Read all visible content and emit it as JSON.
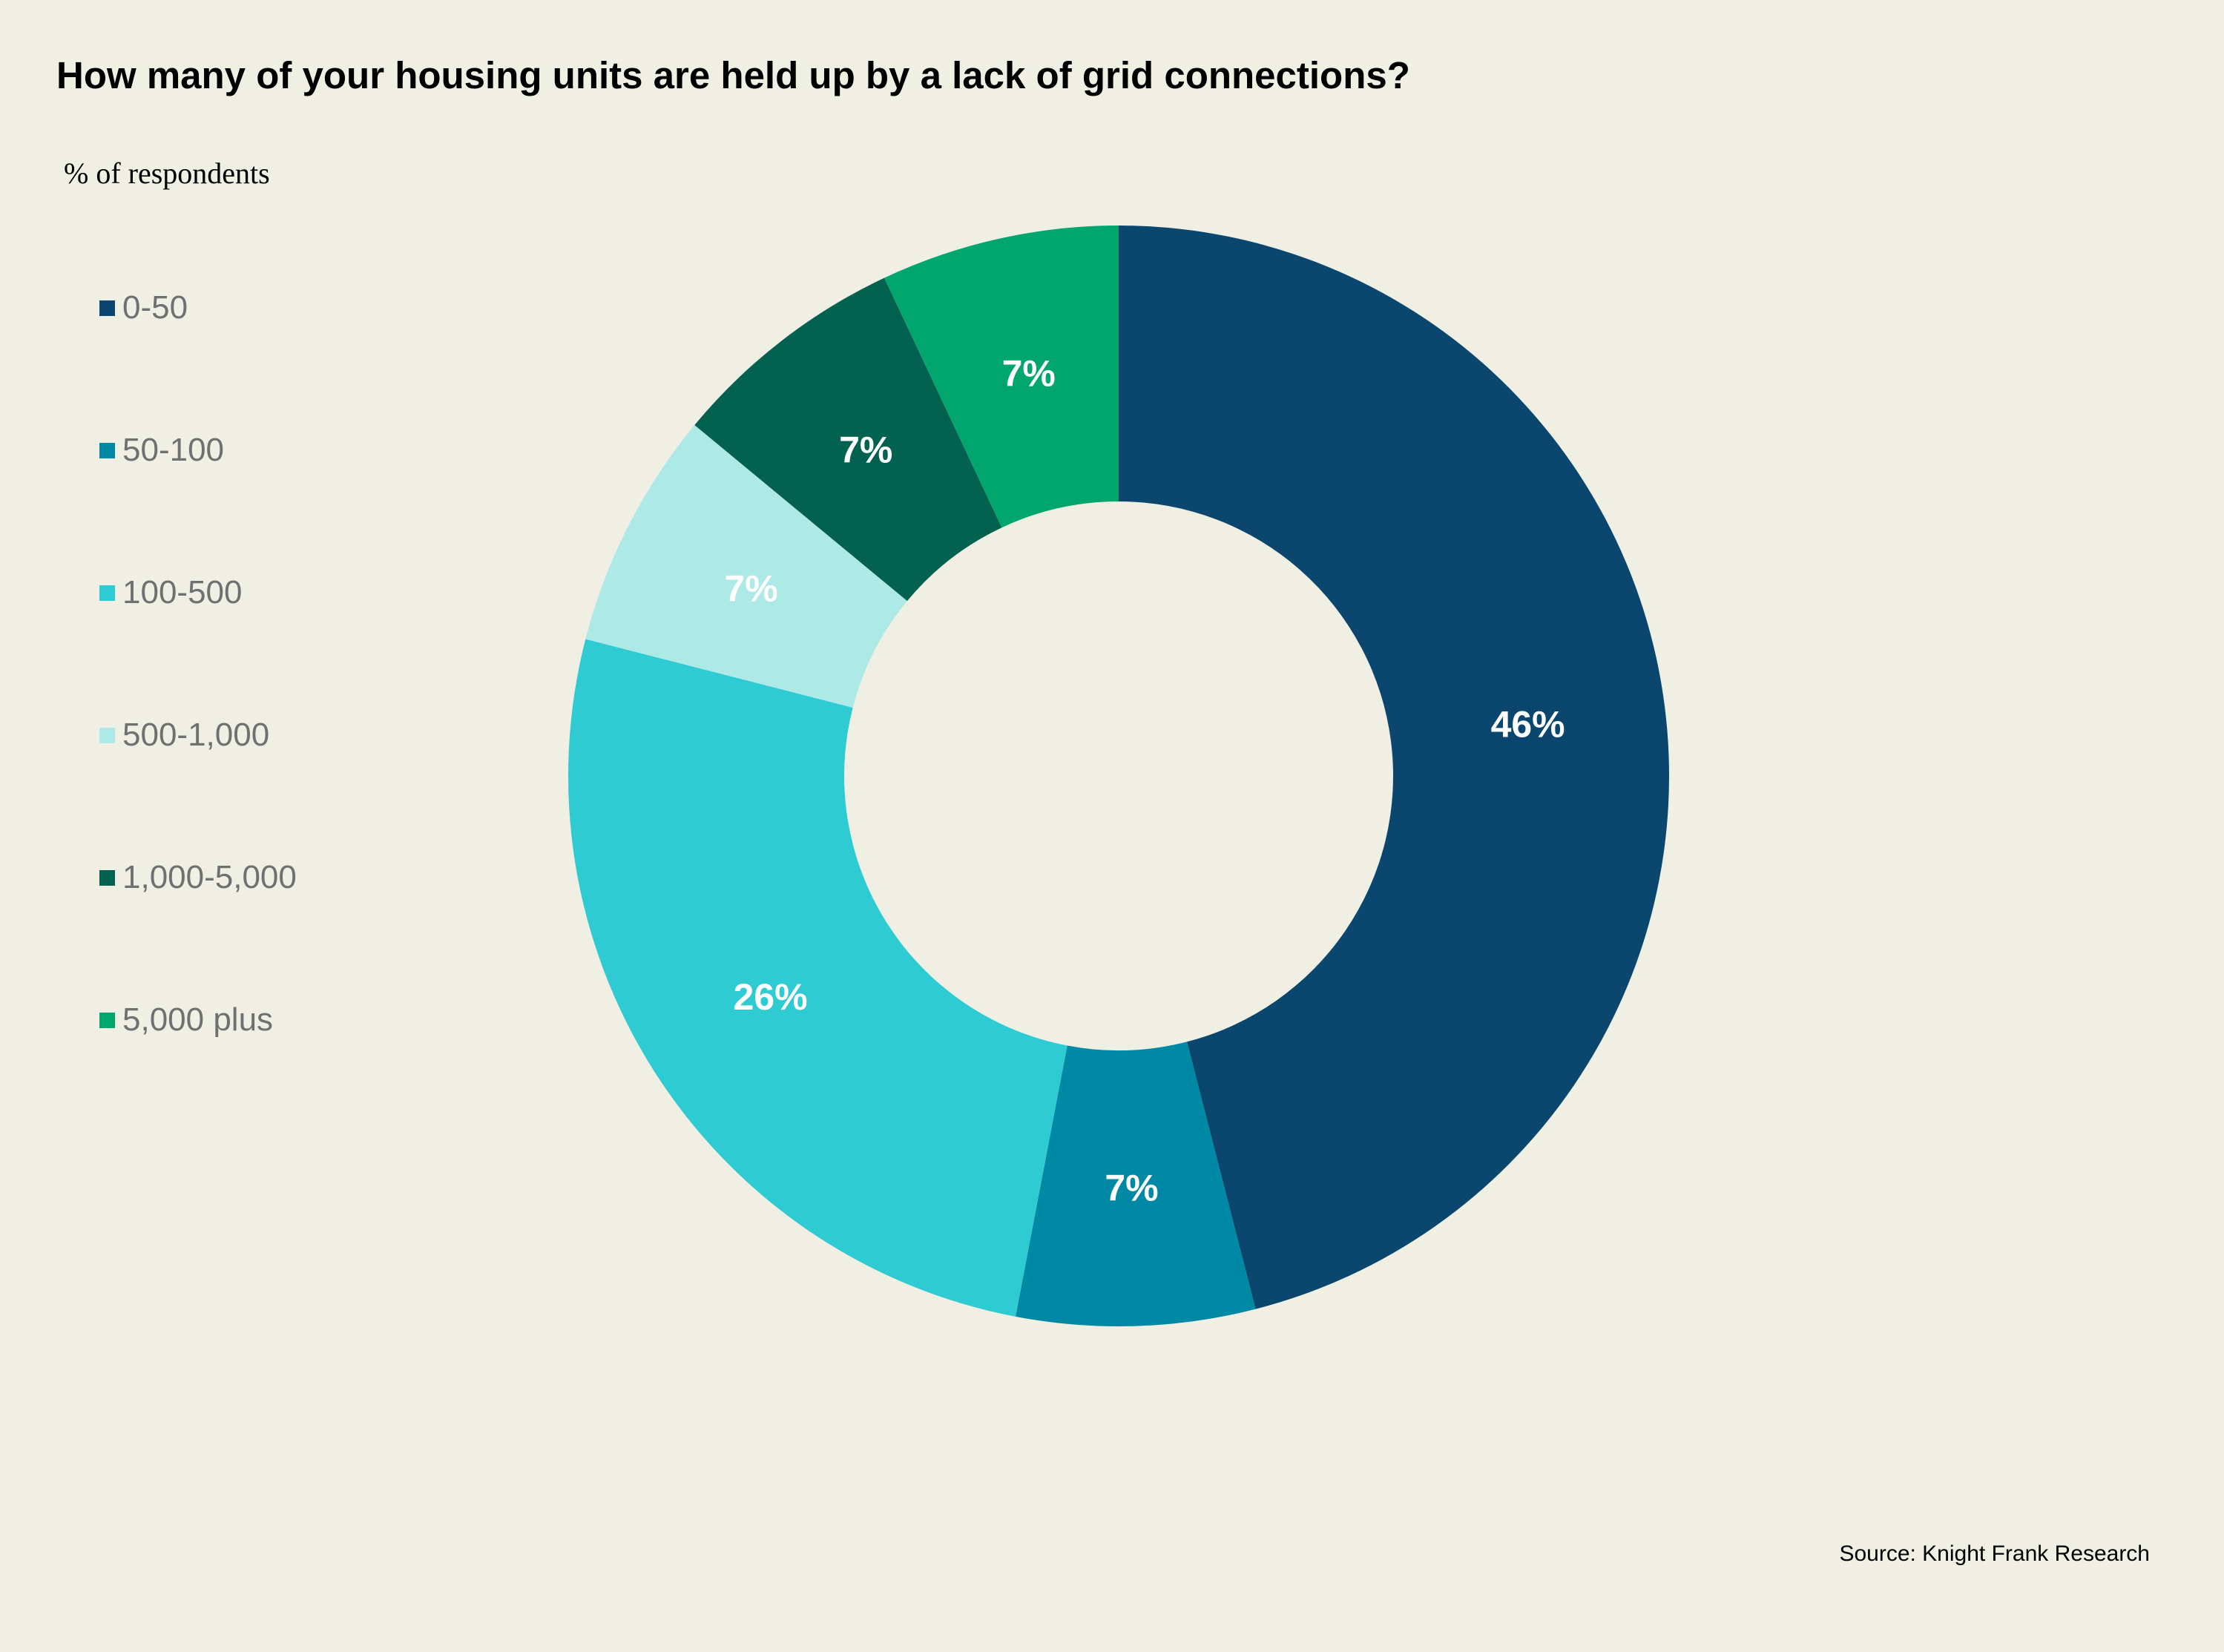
{
  "chart_data": {
    "type": "pie",
    "title": "How many of your housing units are held up by a lack of grid connections?",
    "subtitle": "% of respondents",
    "source": "Source: Knight Frank Research",
    "legend_position": "left",
    "donut": true,
    "categories": [
      "0-50",
      "50-100",
      "100-500",
      "500-1,000",
      "1,000-5,000",
      "5,000 plus"
    ],
    "values": [
      46,
      7,
      26,
      7,
      7,
      7
    ],
    "labels": [
      "46%",
      "7%",
      "26%",
      "7%",
      "7%",
      "7%"
    ],
    "colors": [
      "#0b466e",
      "#0089a5",
      "#2ecbd3",
      "#ade9e6",
      "#03614f",
      "#01a56e"
    ]
  }
}
